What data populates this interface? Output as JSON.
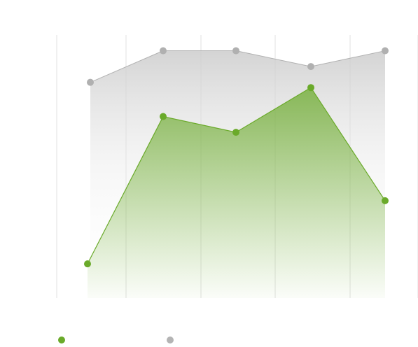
{
  "chart_data": {
    "type": "area",
    "title": "",
    "xlabel": "",
    "ylabel": "",
    "ylim": [
      0,
      100
    ],
    "grid": true,
    "legend": "bottom-left",
    "categories": [
      "",
      "",
      "",
      "",
      ""
    ],
    "series": [
      {
        "name": "",
        "color": "#6aaa2a",
        "values": [
          13,
          69,
          63,
          80,
          37
        ]
      },
      {
        "name": "",
        "color": "#aaaaaa",
        "values": [
          82,
          94,
          94,
          88,
          94
        ]
      }
    ]
  }
}
